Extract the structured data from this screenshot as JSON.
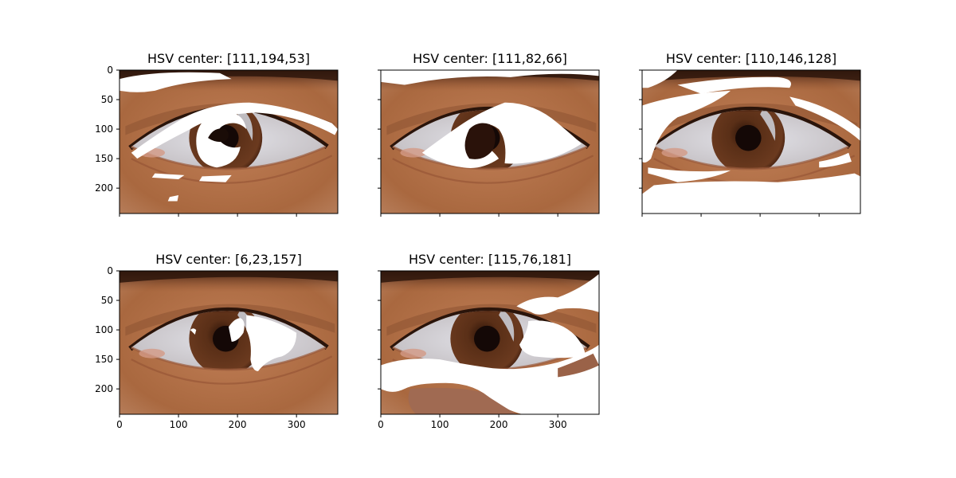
{
  "figure": {
    "panels": [
      {
        "title": "HSV center: [111,194,53]",
        "mask": "iris-dark-swirl",
        "show_y_ticklabels": true,
        "show_x_ticklabels": false
      },
      {
        "title": "HSV center: [111,82,66]",
        "mask": "sclera-band",
        "show_y_ticklabels": false,
        "show_x_ticklabels": false
      },
      {
        "title": "HSV center: [110,146,128]",
        "mask": "skin-wide",
        "show_y_ticklabels": false,
        "show_x_ticklabels": false
      },
      {
        "title": "HSV center: [6,23,157]",
        "mask": "iris-highlight",
        "show_y_ticklabels": true,
        "show_x_ticklabels": true
      },
      {
        "title": "HSV center: [115,76,181]",
        "mask": "lower-right",
        "show_y_ticklabels": false,
        "show_x_ticklabels": true
      }
    ]
  },
  "chart_data": {
    "type": "image",
    "image_extent": {
      "x": [
        0,
        370
      ],
      "y": [
        0,
        243
      ]
    },
    "xticks": [
      0,
      100,
      200,
      300
    ],
    "yticks": [
      0,
      50,
      100,
      150,
      200
    ],
    "xtick_labels": [
      "0",
      "100",
      "200",
      "300"
    ],
    "ytick_labels": [
      "0",
      "50",
      "100",
      "150",
      "200"
    ],
    "grid": false,
    "colors": {
      "skin": "#b0704a",
      "skin_dark": "#6e3a22",
      "lid_shadow": "#4a2515",
      "sclera": "#d6d6dc",
      "iris": "#5a2f17",
      "pupil": "#140806",
      "mask": "#ffffff"
    }
  }
}
